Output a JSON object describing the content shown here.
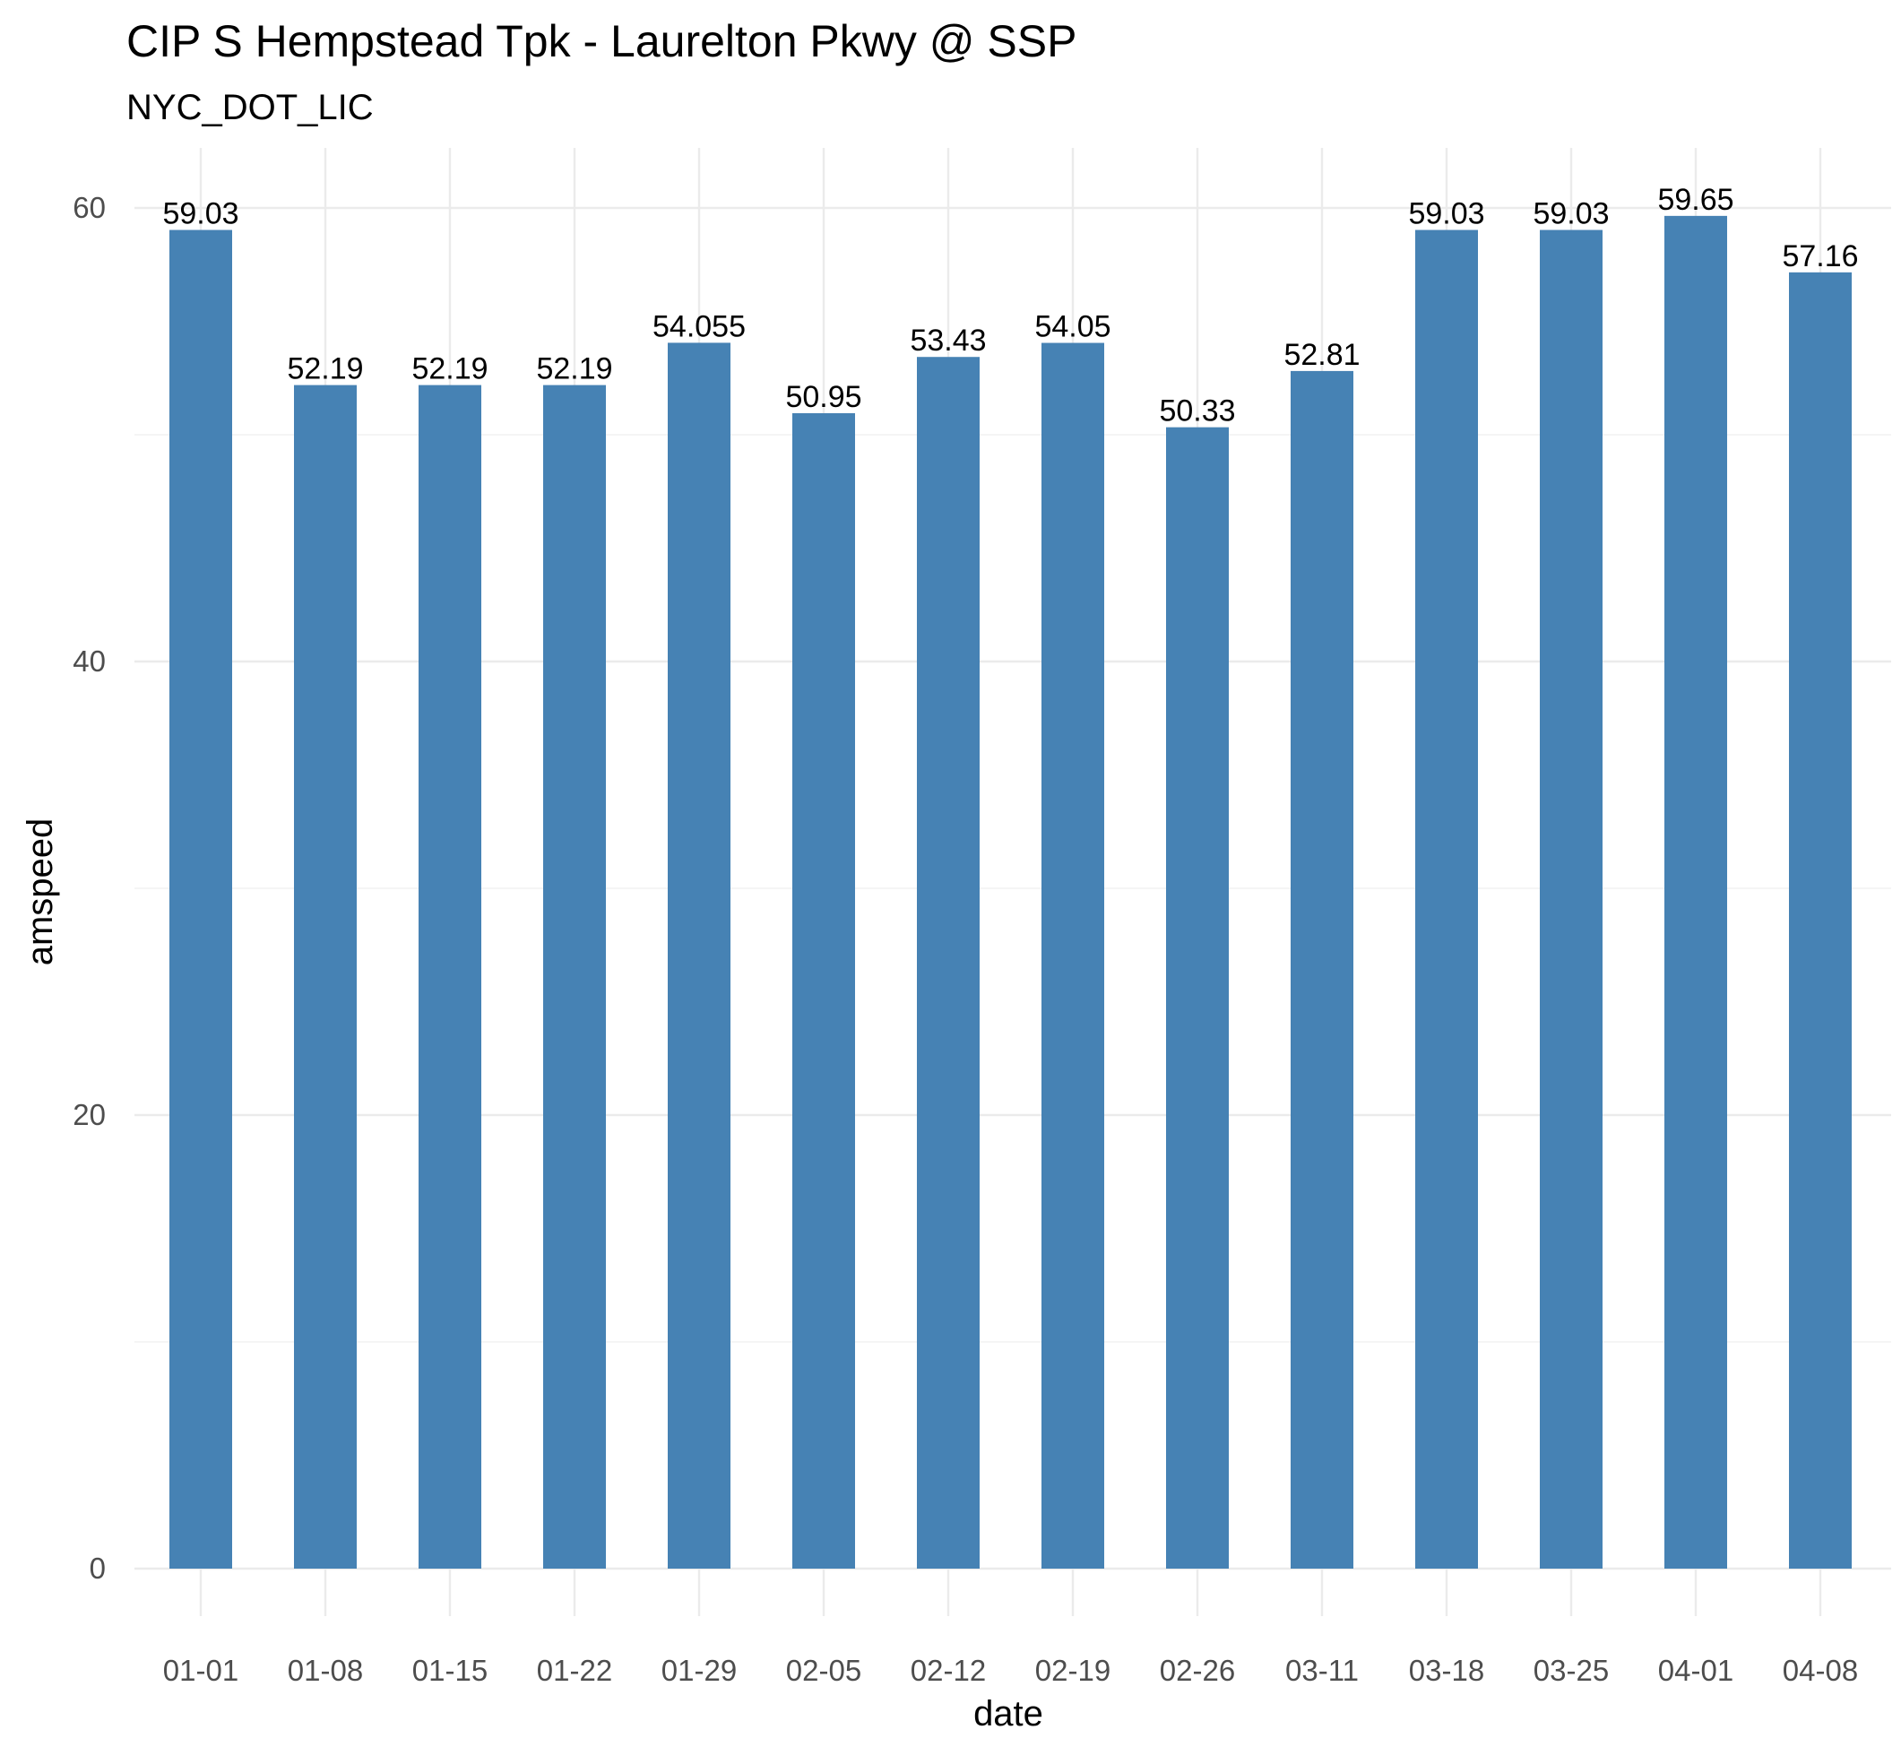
{
  "chart_data": {
    "type": "bar",
    "title": "CIP S Hempstead Tpk - Laurelton Pkwy @ SSP",
    "subtitle": "NYC_DOT_LIC",
    "xlabel": "date",
    "ylabel": "amspeed",
    "categories": [
      "01-01",
      "01-08",
      "01-15",
      "01-22",
      "01-29",
      "02-05",
      "02-12",
      "02-19",
      "02-26",
      "03-11",
      "03-18",
      "03-25",
      "04-01",
      "04-08"
    ],
    "values": [
      59.03,
      52.19,
      52.19,
      52.19,
      54.055,
      50.95,
      53.43,
      54.05,
      50.33,
      52.81,
      59.03,
      59.03,
      59.65,
      57.16
    ],
    "data_labels": [
      "59.03",
      "52.19",
      "52.19",
      "52.19",
      "54.055",
      "50.95",
      "53.43",
      "54.05",
      "50.33",
      "52.81",
      "59.03",
      "59.03",
      "59.65",
      "57.16"
    ],
    "yticks": [
      "0",
      "20",
      "40",
      "60"
    ],
    "ylim": [
      0,
      60
    ],
    "grid": true,
    "legend": "none",
    "bar_color": "#4682B4"
  }
}
